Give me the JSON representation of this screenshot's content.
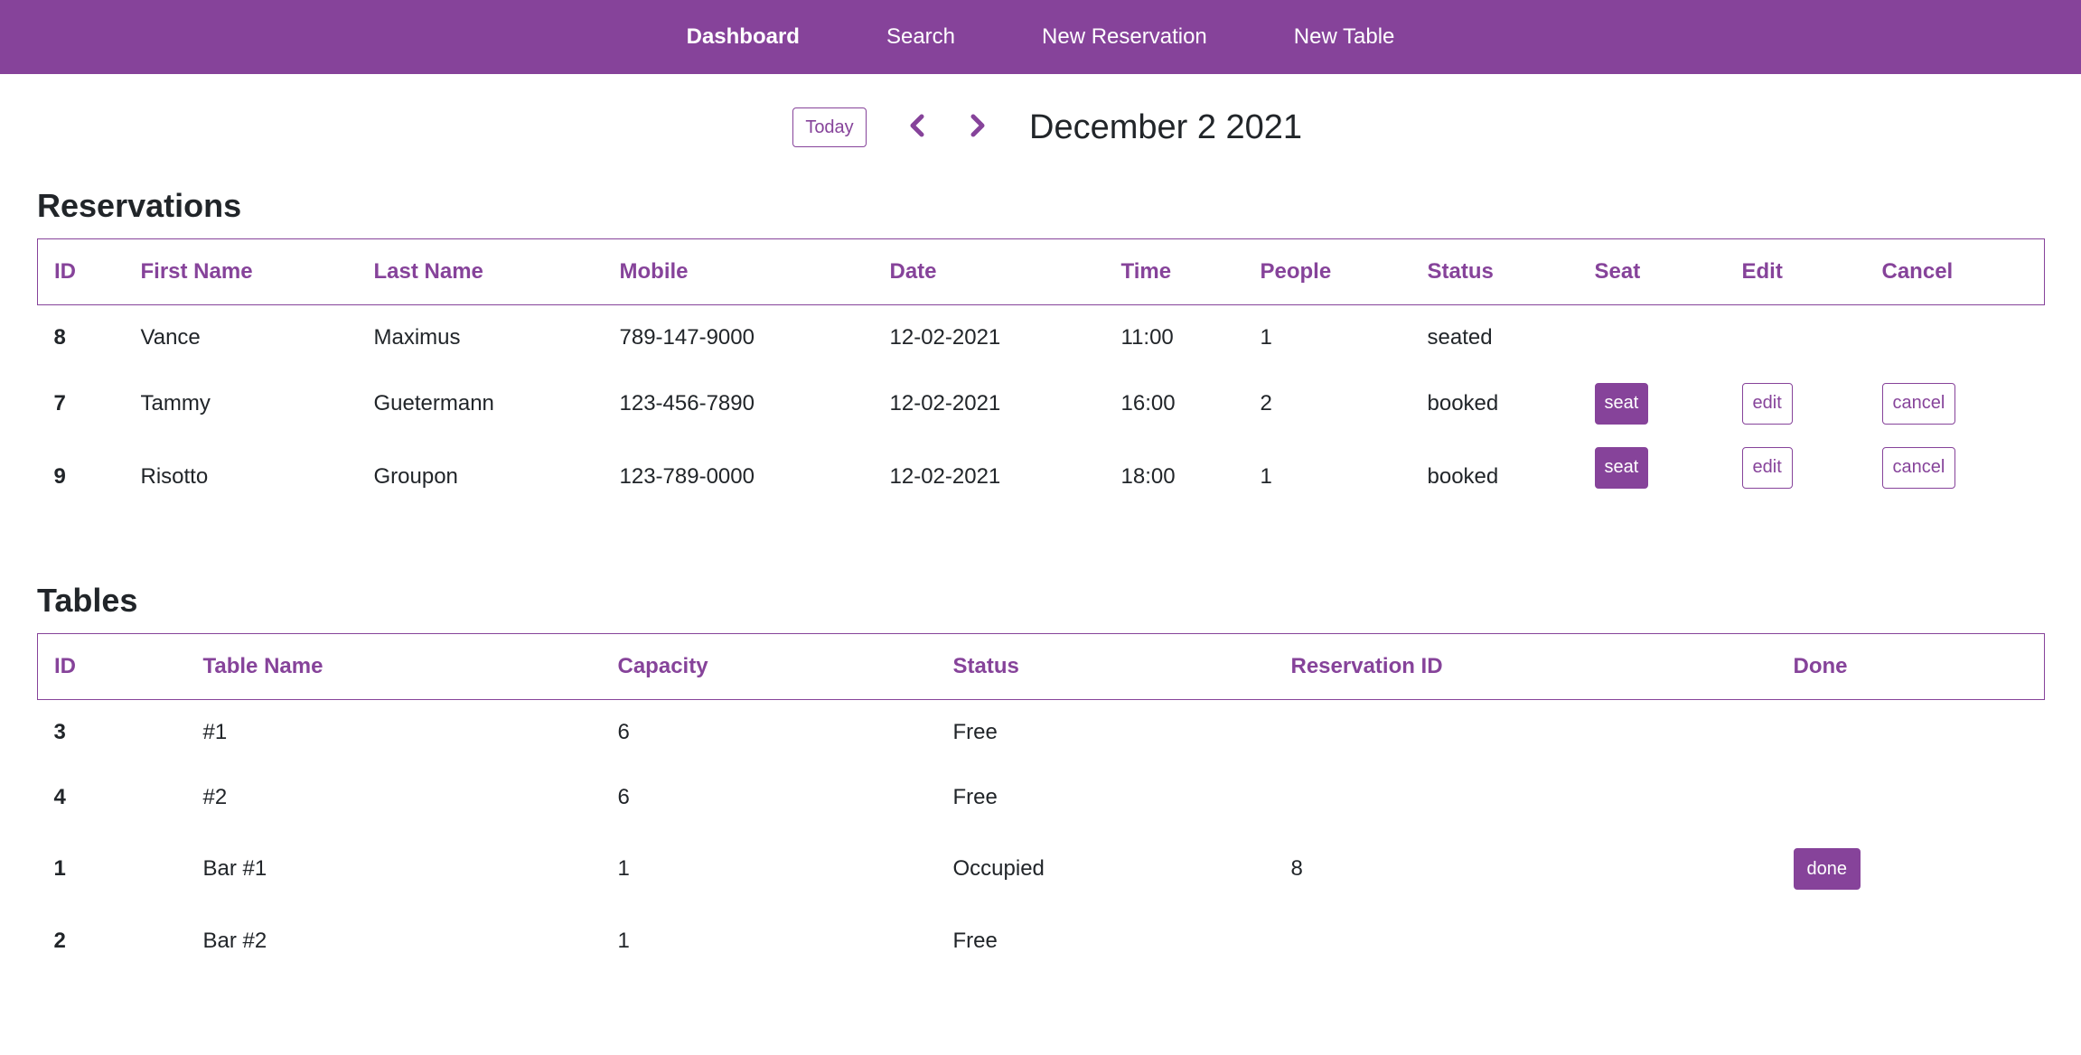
{
  "nav": {
    "items": [
      {
        "label": "Dashboard",
        "active": true
      },
      {
        "label": "Search",
        "active": false
      },
      {
        "label": "New Reservation",
        "active": false
      },
      {
        "label": "New Table",
        "active": false
      }
    ]
  },
  "datebar": {
    "today_label": "Today",
    "prev_icon": "chevron-left-icon",
    "next_icon": "chevron-right-icon",
    "date": "December 2 2021"
  },
  "reservations": {
    "title": "Reservations",
    "headers": [
      "ID",
      "First Name",
      "Last Name",
      "Mobile",
      "Date",
      "Time",
      "People",
      "Status",
      "Seat",
      "Edit",
      "Cancel"
    ],
    "rows": [
      {
        "id": "8",
        "first": "Vance",
        "last": "Maximus",
        "mobile": "789-147-9000",
        "date": "12-02-2021",
        "time": "11:00",
        "people": "1",
        "status": "seated",
        "seat": "",
        "edit": "",
        "cancel": ""
      },
      {
        "id": "7",
        "first": "Tammy",
        "last": "Guetermann",
        "mobile": "123-456-7890",
        "date": "12-02-2021",
        "time": "16:00",
        "people": "2",
        "status": "booked",
        "seat": "seat",
        "edit": "edit",
        "cancel": "cancel"
      },
      {
        "id": "9",
        "first": "Risotto",
        "last": "Groupon",
        "mobile": "123-789-0000",
        "date": "12-02-2021",
        "time": "18:00",
        "people": "1",
        "status": "booked",
        "seat": "seat",
        "edit": "edit",
        "cancel": "cancel"
      }
    ]
  },
  "tables": {
    "title": "Tables",
    "headers": [
      "ID",
      "Table Name",
      "Capacity",
      "Status",
      "Reservation ID",
      "Done"
    ],
    "rows": [
      {
        "id": "3",
        "name": "#1",
        "capacity": "6",
        "status": "Free",
        "reservation_id": "",
        "done": ""
      },
      {
        "id": "4",
        "name": "#2",
        "capacity": "6",
        "status": "Free",
        "reservation_id": "",
        "done": ""
      },
      {
        "id": "1",
        "name": "Bar #1",
        "capacity": "1",
        "status": "Occupied",
        "reservation_id": "8",
        "done": "done"
      },
      {
        "id": "2",
        "name": "Bar #2",
        "capacity": "1",
        "status": "Free",
        "reservation_id": "",
        "done": ""
      }
    ]
  },
  "colors": {
    "accent": "#86439a",
    "text": "#212529",
    "background": "#ffffff"
  }
}
